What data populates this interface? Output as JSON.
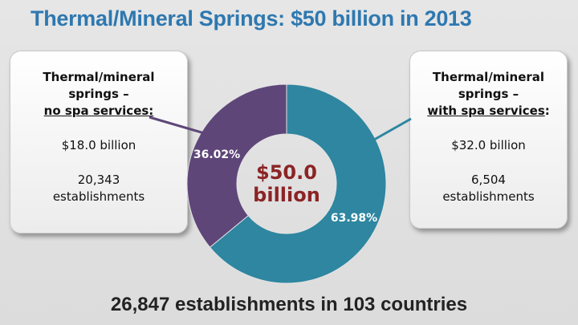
{
  "title": "Thermal/Mineral Springs: $50 billion in 2013",
  "left_box": {
    "line1": "Thermal/mineral",
    "line2": "springs –",
    "line3": "no spa services:",
    "value": "$18.0 billion",
    "count": "20,343",
    "count_label": "establishments"
  },
  "right_box": {
    "line1": "Thermal/mineral",
    "line2": "springs –",
    "line3": "with spa services",
    "line3_suffix": ":",
    "value": "$32.0 billion",
    "count": "6,504",
    "count_label": "establishments"
  },
  "footer": "26,847 establishments in 103 countries",
  "chart_data": {
    "type": "pie",
    "variant": "donut",
    "center_label": [
      "$50.0",
      "billion"
    ],
    "slices": [
      {
        "name": "Thermal/mineral springs – with spa services",
        "value": 63.98,
        "label": "63.98%",
        "color": "#2e86a0"
      },
      {
        "name": "Thermal/mineral springs – no spa services",
        "value": 36.02,
        "label": "36.02%",
        "color": "#5e4679"
      }
    ]
  }
}
